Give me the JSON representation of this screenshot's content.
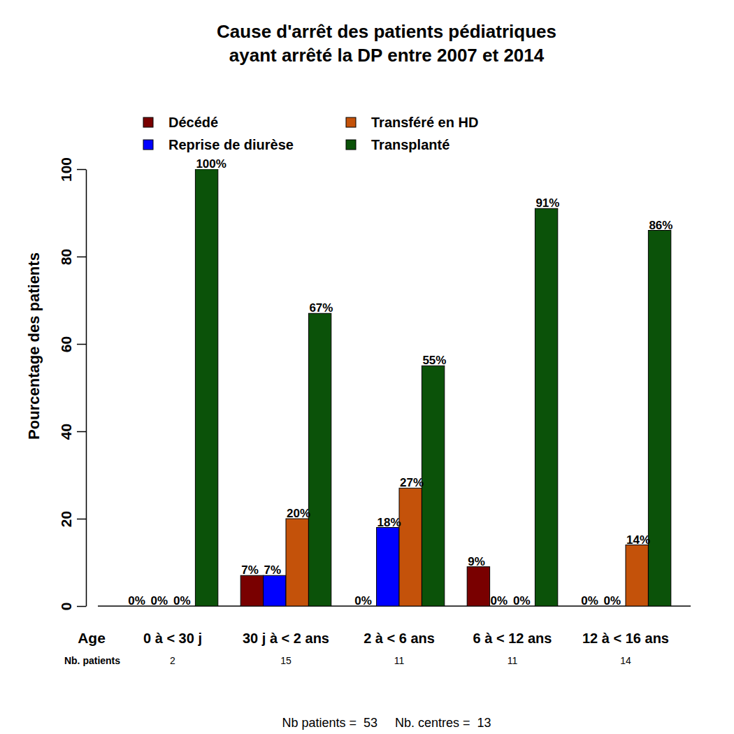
{
  "chart_data": {
    "type": "bar",
    "title": "Cause d'arrêt des patients pédiatriques\nayant arrêté la DP entre 2007 et 2014",
    "y_label": "Pourcentage des patients",
    "x_label": "Age",
    "categories": [
      "0 à < 30 j",
      "30 j à < 2 ans",
      "2 à < 6 ans",
      "6 à < 12 ans",
      "12 à < 16 ans"
    ],
    "counts_label": "Nb. patients",
    "counts": [
      2,
      15,
      11,
      11,
      14
    ],
    "footer": "Nb patients =  53     Nb. centres =  13",
    "series": [
      {
        "name": "Décédé",
        "color": "#790000",
        "values": [
          0,
          7,
          0,
          9,
          0
        ],
        "value_labels": [
          "0%",
          "7%",
          "0%",
          "9%",
          "0%"
        ]
      },
      {
        "name": "Reprise de diurèse",
        "color": "#0000ff",
        "values": [
          0,
          7,
          18,
          0,
          0
        ],
        "value_labels": [
          "0%",
          "7%",
          "18%",
          "0%",
          "0%"
        ]
      },
      {
        "name": "Transféré en HD",
        "color": "#c4520a",
        "values": [
          0,
          20,
          27,
          0,
          14
        ],
        "value_labels": [
          "0%",
          "20%",
          "27%",
          "0%",
          "14%"
        ]
      },
      {
        "name": "Transplanté",
        "color": "#0b5209",
        "values": [
          100,
          67,
          55,
          91,
          86
        ],
        "value_labels": [
          "100%",
          "67%",
          "55%",
          "91%",
          "86%"
        ]
      }
    ],
    "ylim": [
      0,
      100
    ],
    "yticks": [
      0,
      20,
      40,
      60,
      80,
      100
    ],
    "grid": false,
    "legend": "top",
    "data_labels": true
  }
}
